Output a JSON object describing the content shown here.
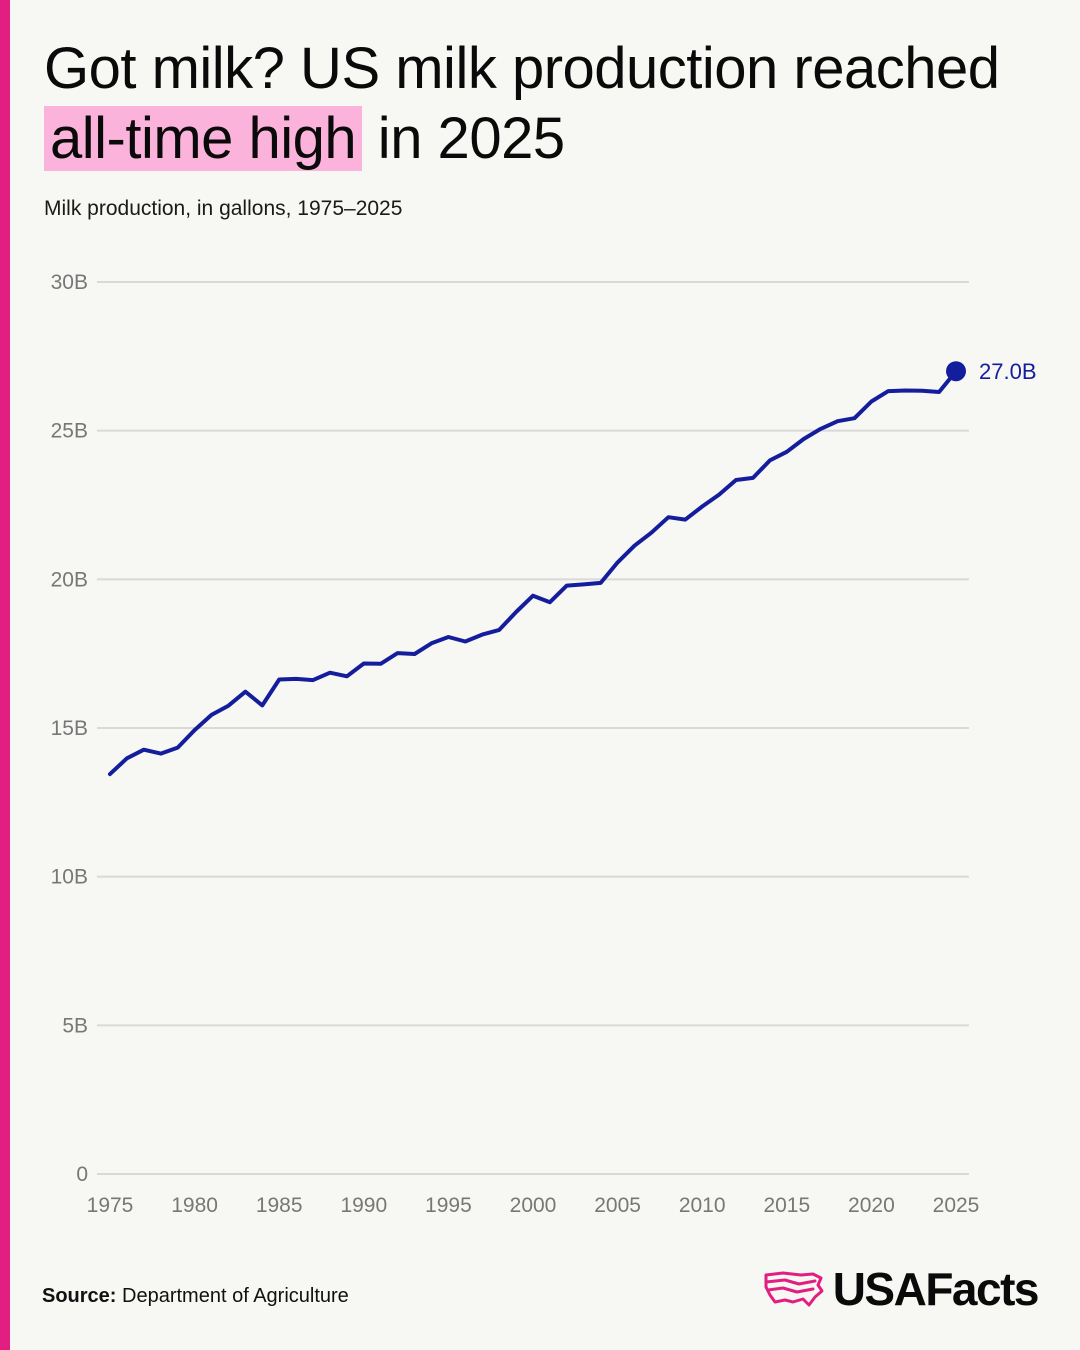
{
  "colors": {
    "accent": "#e21f81",
    "highlight": "#fbb3db",
    "line": "#141e9c",
    "grid": "#d9d9d6",
    "tick": "#777777"
  },
  "header": {
    "title_pre": "Got milk? US milk production reached ",
    "title_highlight": "all-time high",
    "title_post": " in 2025",
    "subtitle": "Milk production, in gallons, 1975–2025"
  },
  "footer": {
    "source_label": "Source:",
    "source_text": " Department of Agriculture",
    "logo_text": "USAFacts",
    "logo_icon": "usa-map-icon"
  },
  "chart_data": {
    "type": "line",
    "title": "",
    "xlabel": "",
    "ylabel": "",
    "xlim": [
      1975,
      2025
    ],
    "ylim": [
      0,
      30
    ],
    "x_ticks": [
      1975,
      1980,
      1985,
      1990,
      1995,
      2000,
      2005,
      2010,
      2015,
      2020,
      2025
    ],
    "x_tick_labels": [
      "1975",
      "1980",
      "1985",
      "1990",
      "1995",
      "2000",
      "2005",
      "2010",
      "2015",
      "2020",
      "2025"
    ],
    "y_ticks": [
      0,
      5,
      10,
      15,
      20,
      25,
      30
    ],
    "y_tick_labels": [
      "0",
      "5B",
      "10B",
      "15B",
      "20B",
      "25B",
      "30B"
    ],
    "grid": true,
    "end_label": "27.0B",
    "series": [
      {
        "x": [
          1975,
          1976,
          1977,
          1978,
          1979,
          1980,
          1981,
          1982,
          1983,
          1984,
          1985,
          1986,
          1987,
          1988,
          1989,
          1990,
          1991,
          1992,
          1993,
          1994,
          1995,
          1996,
          1997,
          1998,
          1999,
          2000,
          2001,
          2002,
          2003,
          2004,
          2005,
          2006,
          2007,
          2008,
          2009,
          2010,
          2011,
          2012,
          2013,
          2014,
          2015,
          2016,
          2017,
          2018,
          2019,
          2020,
          2021,
          2022,
          2023,
          2024,
          2025
        ],
        "values": [
          13.45,
          13.98,
          14.27,
          14.14,
          14.34,
          14.93,
          15.44,
          15.75,
          16.22,
          15.76,
          16.63,
          16.65,
          16.61,
          16.86,
          16.74,
          17.17,
          17.16,
          17.52,
          17.49,
          17.85,
          18.06,
          17.91,
          18.14,
          18.3,
          18.9,
          19.45,
          19.23,
          19.79,
          19.83,
          19.88,
          20.57,
          21.13,
          21.57,
          22.09,
          22.01,
          22.45,
          22.85,
          23.34,
          23.41,
          24.0,
          24.29,
          24.72,
          25.06,
          25.32,
          25.42,
          25.98,
          26.33,
          26.35,
          26.34,
          26.3,
          27.0
        ]
      }
    ]
  }
}
